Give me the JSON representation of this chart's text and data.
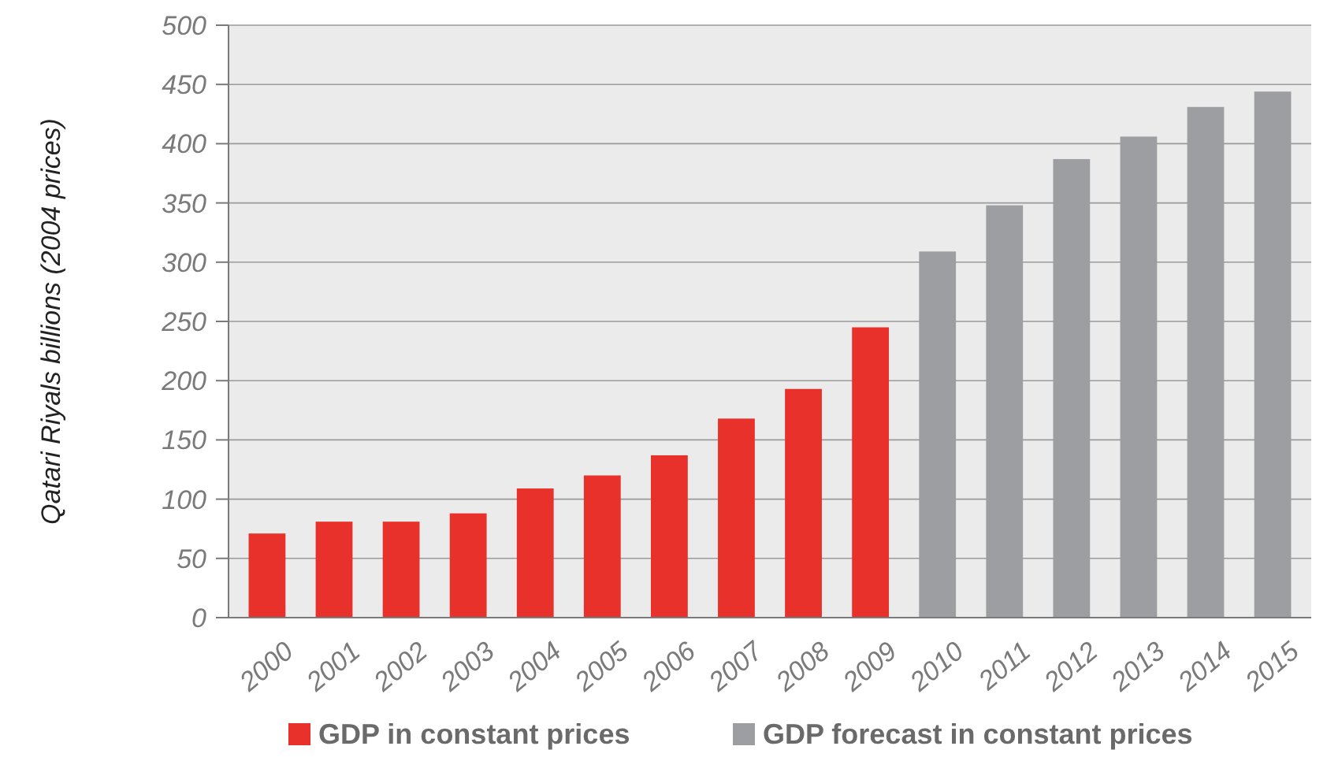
{
  "chart_data": {
    "type": "bar",
    "ylabel": "Qatari Riyals billions (2004 prices)",
    "categories": [
      "2000",
      "2001",
      "2002",
      "2003",
      "2004",
      "2005",
      "2006",
      "2007",
      "2008",
      "2009",
      "2010",
      "2011",
      "2012",
      "2013",
      "2014",
      "2015"
    ],
    "series": [
      {
        "name": "GDP in constant prices",
        "color": "#e8312a",
        "values": [
          71,
          81,
          81,
          88,
          109,
          120,
          137,
          168,
          193,
          245,
          null,
          null,
          null,
          null,
          null,
          null
        ]
      },
      {
        "name": "GDP forecast in constant prices",
        "color": "#9d9ea1",
        "values": [
          null,
          null,
          null,
          null,
          null,
          null,
          null,
          null,
          null,
          null,
          309,
          348,
          387,
          406,
          431,
          444
        ]
      }
    ],
    "stacked": true,
    "ylim": [
      0,
      500
    ],
    "yticks": [
      0,
      50,
      100,
      150,
      200,
      250,
      300,
      350,
      400,
      450,
      500
    ],
    "grid": "y",
    "legend": "bottom"
  }
}
